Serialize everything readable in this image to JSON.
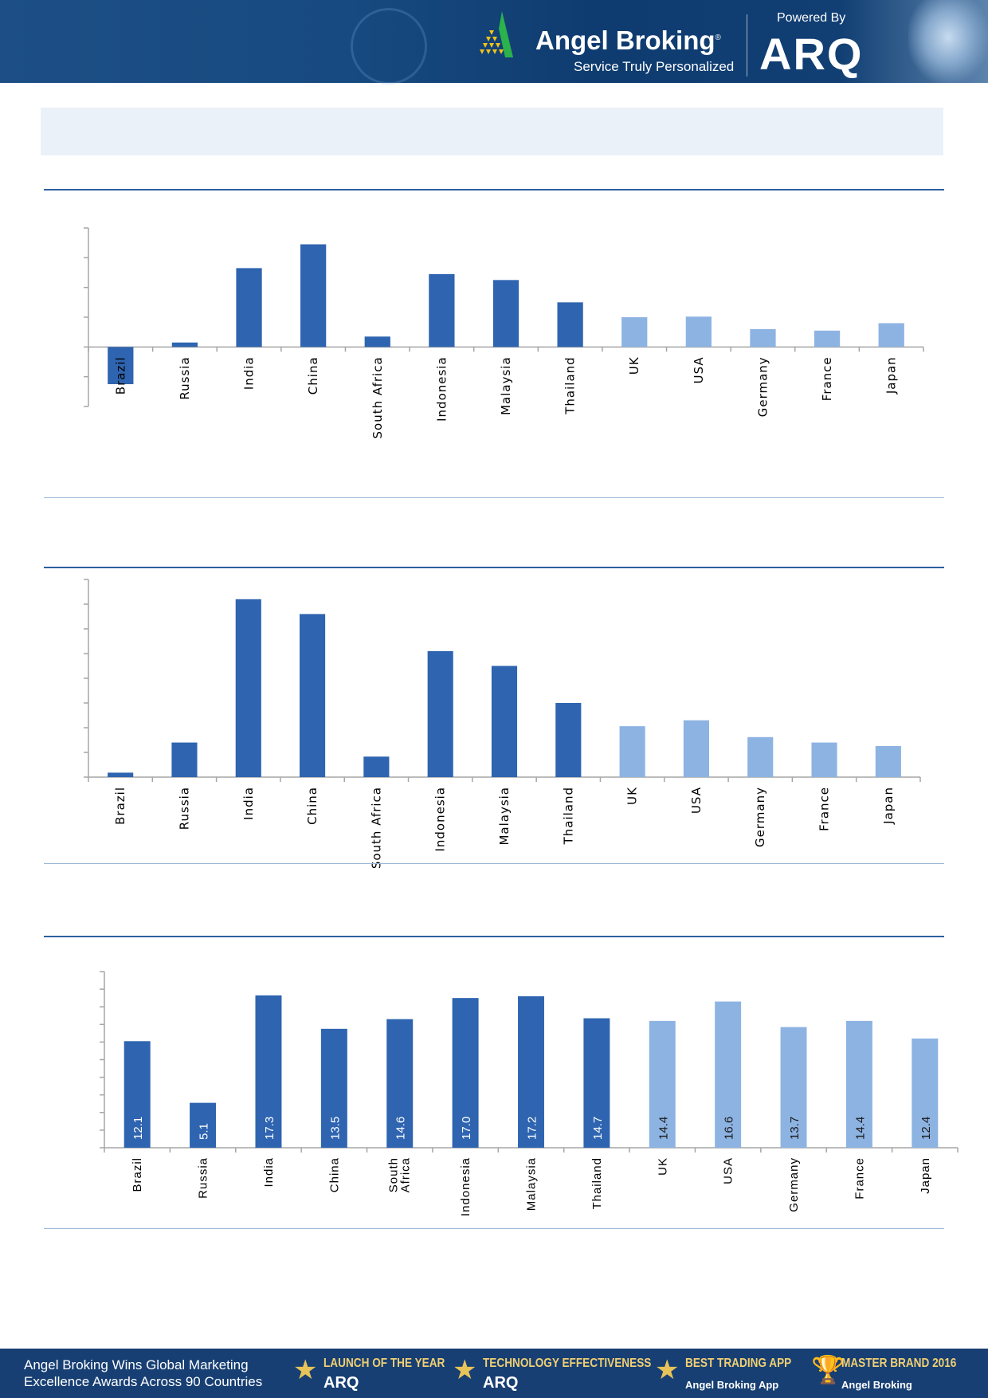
{
  "header": {
    "brand": "Angel Broking",
    "registered": "®",
    "tagline": "Service Truly Personalized",
    "powered_by": "Powered By",
    "product": "ARQ"
  },
  "colors": {
    "dark_bar": "#2e64b0",
    "light_bar": "#8db3e2",
    "rule": "#2c5ea0",
    "header_bg": "#174a80"
  },
  "chart_data": [
    {
      "type": "bar",
      "title": "",
      "categories": [
        "Brazil",
        "Russia",
        "India",
        "China",
        "South Africa",
        "Indonesia",
        "Malaysia",
        "Thailand",
        "UK",
        "USA",
        "Germany",
        "France",
        "Japan"
      ],
      "values": [
        -1.25,
        0.15,
        2.65,
        3.45,
        0.35,
        2.45,
        2.25,
        1.5,
        1.0,
        1.02,
        0.6,
        0.55,
        0.8
      ],
      "bar_colors": [
        "dark",
        "dark",
        "dark",
        "dark",
        "dark",
        "dark",
        "dark",
        "dark",
        "light",
        "light",
        "light",
        "light",
        "light"
      ],
      "ylim": [
        -2,
        4
      ],
      "tick_labels_shown": false,
      "grid": false
    },
    {
      "type": "bar",
      "title": "",
      "categories": [
        "Brazil",
        "Russia",
        "India",
        "China",
        "South Africa",
        "Indonesia",
        "Malaysia",
        "Thailand",
        "UK",
        "USA",
        "Germany",
        "France",
        "Japan"
      ],
      "values": [
        0.18,
        1.4,
        7.2,
        6.6,
        0.83,
        5.1,
        4.5,
        3.0,
        2.06,
        2.3,
        1.62,
        1.4,
        1.26
      ],
      "bar_colors": [
        "dark",
        "dark",
        "dark",
        "dark",
        "dark",
        "dark",
        "dark",
        "dark",
        "light",
        "light",
        "light",
        "light",
        "light"
      ],
      "ylim": [
        0,
        8
      ],
      "tick_labels_shown": false,
      "grid": false
    },
    {
      "type": "bar",
      "title": "",
      "categories": [
        "Brazil",
        "Russia",
        "India",
        "China",
        "South Africa",
        "Indonesia",
        "Malaysia",
        "Thailand",
        "UK",
        "USA",
        "Germany",
        "France",
        "Japan"
      ],
      "values": [
        12.1,
        5.1,
        17.3,
        13.5,
        14.6,
        17.0,
        17.2,
        14.7,
        14.4,
        16.6,
        13.7,
        14.4,
        12.4
      ],
      "data_labels": [
        "12.1",
        "5.1",
        "17.3",
        "13.5",
        "14.6",
        "17.0",
        "17.2",
        "14.7",
        "14.4",
        "16.6",
        "13.7",
        "14.4",
        "12.4"
      ],
      "bar_colors": [
        "dark",
        "dark",
        "dark",
        "dark",
        "dark",
        "dark",
        "dark",
        "dark",
        "light",
        "light",
        "light",
        "light",
        "light"
      ],
      "ylim": [
        0,
        20
      ],
      "tick_labels_shown": false,
      "grid": false
    }
  ],
  "footer": {
    "headline_line1": "Angel Broking Wins Global Marketing",
    "headline_line2": "Excellence Awards Across 90 Countries",
    "awards": [
      {
        "title": "LAUNCH OF THE YEAR",
        "subtitle": "ARQ"
      },
      {
        "title": "TECHNOLOGY EFFECTIVENESS",
        "subtitle": "ARQ"
      },
      {
        "title": "BEST TRADING APP",
        "subtitle": "Angel Broking App"
      },
      {
        "title": "MASTER BRAND 2016",
        "subtitle": "Angel Broking"
      }
    ]
  }
}
